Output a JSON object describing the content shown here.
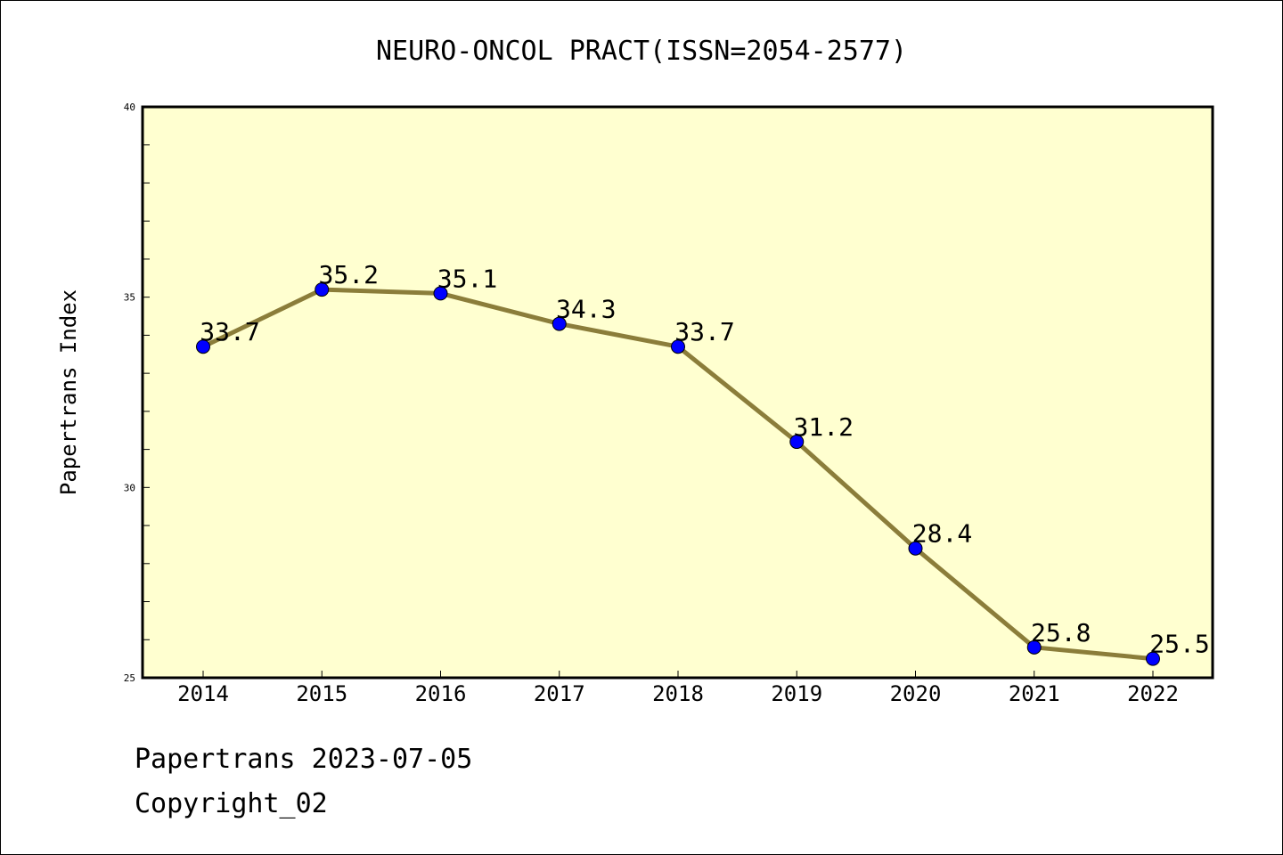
{
  "footer": {
    "line1": "Papertrans 2023-07-05",
    "line2": "Copyright_02"
  },
  "chart_data": {
    "type": "line",
    "title": "NEURO-ONCOL PRACT(ISSN=2054-2577)",
    "xlabel": "",
    "ylabel": "Papertrans Index",
    "categories": [
      "2014",
      "2015",
      "2016",
      "2017",
      "2018",
      "2019",
      "2020",
      "2021",
      "2022"
    ],
    "series": [
      {
        "values": [
          33.7,
          35.2,
          35.1,
          34.3,
          33.7,
          31.2,
          28.4,
          25.8,
          25.5
        ]
      }
    ],
    "data_labels": [
      "33.7",
      "35.2",
      "35.1",
      "34.3",
      "33.7",
      "31.2",
      "28.4",
      "25.8",
      "25.5"
    ],
    "ylim": [
      25,
      40
    ],
    "yticks": [
      25,
      30,
      35,
      40
    ],
    "grid": false,
    "legend": "none",
    "colors": {
      "plot_background": "#ffffd0",
      "line": "#8b7d3a",
      "marker": "#0000ff"
    }
  }
}
